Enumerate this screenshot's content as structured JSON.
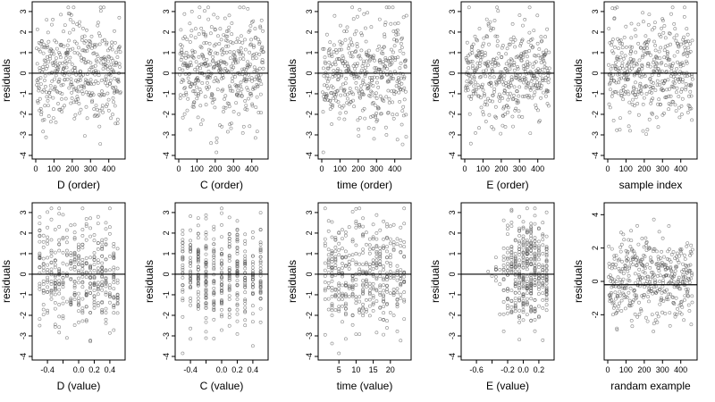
{
  "chart_data": [
    {
      "type": "scatter",
      "title": "",
      "xlabel": "D (order)",
      "ylabel": "residuals",
      "xlim": [
        0,
        470
      ],
      "ylim": [
        -4,
        3.3
      ],
      "xticks": [
        0,
        100,
        200,
        300,
        400
      ],
      "yticks": [
        -4,
        -3,
        -2,
        -1,
        0,
        1,
        2,
        3
      ],
      "hline": 0,
      "x": [],
      "y": []
    },
    {
      "type": "scatter",
      "title": "",
      "xlabel": "C (order)",
      "ylabel": "residuals",
      "xlim": [
        0,
        470
      ],
      "ylim": [
        -4,
        3.3
      ],
      "xticks": [
        0,
        100,
        200,
        300,
        400
      ],
      "yticks": [
        -4,
        -3,
        -2,
        -1,
        0,
        1,
        2,
        3
      ],
      "hline": 0,
      "x": [],
      "y": []
    },
    {
      "type": "scatter",
      "title": "",
      "xlabel": "time (order)",
      "ylabel": "residuals",
      "xlim": [
        0,
        470
      ],
      "ylim": [
        -4,
        3.3
      ],
      "xticks": [
        0,
        100,
        200,
        300,
        400
      ],
      "yticks": [
        -4,
        -3,
        -2,
        -1,
        0,
        1,
        2,
        3
      ],
      "hline": 0,
      "x": [],
      "y": []
    },
    {
      "type": "scatter",
      "title": "",
      "xlabel": "E (order)",
      "ylabel": "residuals",
      "xlim": [
        0,
        470
      ],
      "ylim": [
        -4,
        3.3
      ],
      "xticks": [
        0,
        100,
        200,
        300,
        400
      ],
      "yticks": [
        -4,
        -3,
        -2,
        -1,
        0,
        1,
        2,
        3
      ],
      "hline": 0,
      "x": [],
      "y": []
    },
    {
      "type": "scatter",
      "title": "",
      "xlabel": "sample index",
      "ylabel": "residuals",
      "xlim": [
        0,
        470
      ],
      "ylim": [
        -4,
        3.3
      ],
      "xticks": [
        0,
        100,
        200,
        300,
        400
      ],
      "yticks": [
        -4,
        -3,
        -2,
        -1,
        0,
        1,
        2,
        3
      ],
      "hline": 0,
      "x": [],
      "y": []
    },
    {
      "type": "scatter",
      "title": "",
      "xlabel": "D (value)",
      "ylabel": "residuals",
      "xlim": [
        -0.55,
        0.55
      ],
      "ylim": [
        -4,
        3.3
      ],
      "xticks": [
        -0.4,
        -0.2,
        0,
        0.2,
        0.4
      ],
      "xtick_labels": [
        "-0.4",
        "",
        "0.0",
        "0.2",
        "0.4"
      ],
      "yticks": [
        -4,
        -3,
        -2,
        -1,
        0,
        1,
        2,
        3
      ],
      "hline": 0,
      "x": [],
      "y": []
    },
    {
      "type": "scatter",
      "title": "",
      "xlabel": "C (value)",
      "ylabel": "residuals",
      "xlim": [
        -0.55,
        0.55
      ],
      "ylim": [
        -4,
        3.3
      ],
      "xticks": [
        -0.4,
        -0.2,
        0,
        0.2,
        0.4
      ],
      "xtick_labels": [
        "-0.4",
        "",
        "0.0",
        "0.2",
        "0.4"
      ],
      "yticks": [
        -4,
        -3,
        -2,
        -1,
        0,
        1,
        2,
        3
      ],
      "hline": 0,
      "x": [],
      "y": []
    },
    {
      "type": "scatter",
      "title": "",
      "xlabel": "time (value)",
      "ylabel": "residuals",
      "xlim": [
        0,
        25
      ],
      "ylim": [
        -4,
        3.3
      ],
      "xticks": [
        5,
        10,
        15,
        20
      ],
      "yticks": [
        -4,
        -3,
        -2,
        -1,
        0,
        1,
        2,
        3
      ],
      "hline": 0,
      "x": [],
      "y": []
    },
    {
      "type": "scatter",
      "title": "",
      "xlabel": "E (value)",
      "ylabel": "residuals",
      "xlim": [
        -0.75,
        0.35
      ],
      "ylim": [
        -4,
        3.3
      ],
      "xticks": [
        -0.6,
        -0.4,
        -0.2,
        0,
        0.2
      ],
      "xtick_labels": [
        "-0.6",
        "",
        "-0.2",
        "0.0",
        "0.2"
      ],
      "yticks": [
        -4,
        -3,
        -2,
        -1,
        0,
        1,
        2,
        3
      ],
      "hline": 0,
      "x": [],
      "y": []
    },
    {
      "type": "scatter",
      "title": "",
      "xlabel": "randam example",
      "ylabel": "residuals",
      "xlim": [
        0,
        470
      ],
      "ylim": [
        -4.5,
        4.5
      ],
      "xticks": [
        0,
        100,
        200,
        300,
        400
      ],
      "yticks": [
        -2,
        0,
        2,
        4
      ],
      "hline": -0.2,
      "x": [],
      "y": []
    }
  ]
}
